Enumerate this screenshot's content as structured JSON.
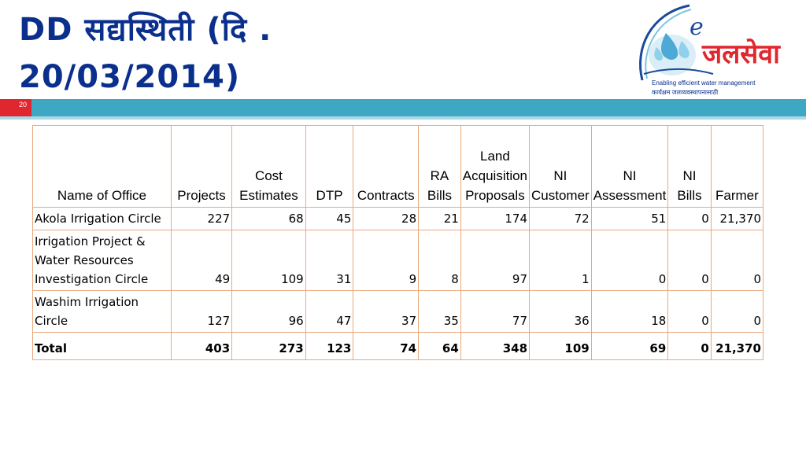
{
  "slide": {
    "title_line1": "DD सद्यस्थिती (दि .",
    "title_line2": "20/03/2014)",
    "slide_number": "20"
  },
  "logo": {
    "letter": "e",
    "name": "जलसेवा",
    "tagline": "Enabling efficient water management",
    "subtitle": "कार्यक्षम जलव्यवस्थापनासाठी"
  },
  "colors": {
    "title": "#0a2f8c",
    "band": "#3ea8c4",
    "accent": "#e0262e",
    "table_border": "#e8a87c"
  },
  "table": {
    "headers": [
      "Name of Office",
      "Projects",
      "Cost Estimates",
      "DTP",
      "Contracts",
      "RA Bills",
      "Land Acquisition Proposals",
      "NI Customer",
      "NI Assessment",
      "NI Bills",
      "Farmer"
    ],
    "rows": [
      [
        "Akola Irrigation Circle",
        "227",
        "68",
        "45",
        "28",
        "21",
        "174",
        "72",
        "51",
        "0",
        "21,370"
      ],
      [
        "Irrigation Project & Water Resources Investigation Circle",
        "49",
        "109",
        "31",
        "9",
        "8",
        "97",
        "1",
        "0",
        "0",
        "0"
      ],
      [
        "Washim Irrigation Circle",
        "127",
        "96",
        "47",
        "37",
        "35",
        "77",
        "36",
        "18",
        "0",
        "0"
      ],
      [
        "Total",
        "403",
        "273",
        "123",
        "74",
        "64",
        "348",
        "109",
        "69",
        "0",
        "21,370"
      ]
    ]
  }
}
